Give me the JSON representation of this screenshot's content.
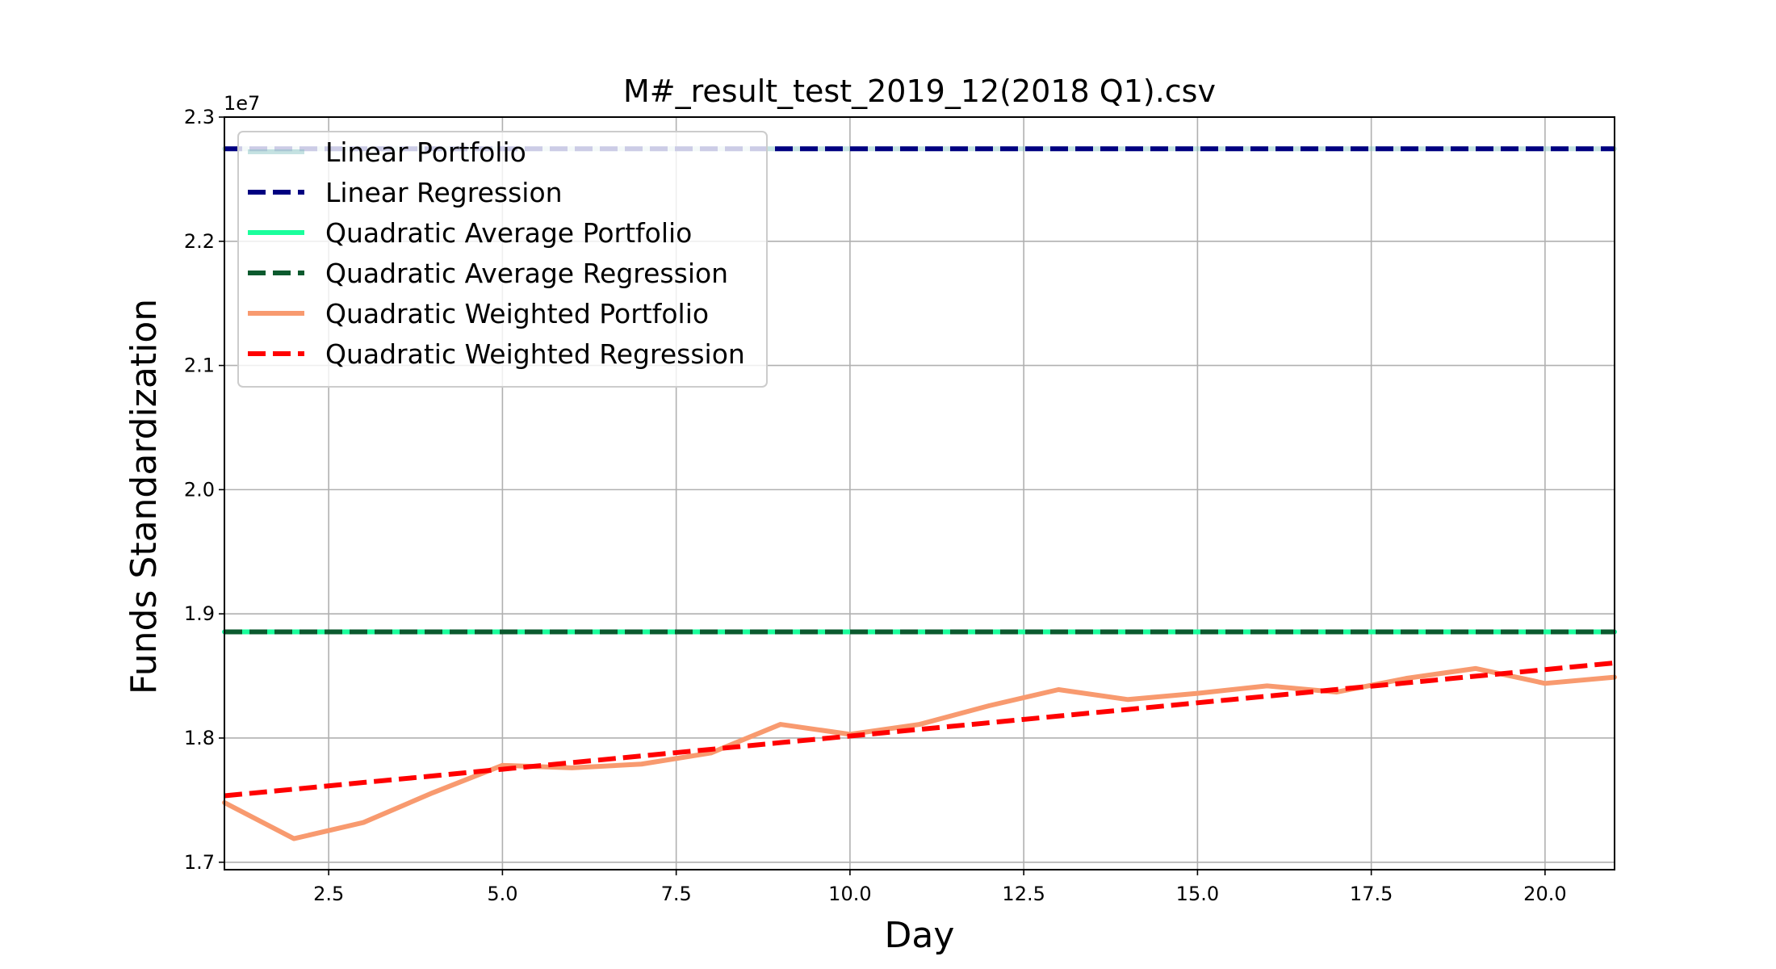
{
  "chart_data": {
    "type": "line",
    "title": "M#_result_test_2019_12(2018 Q1).csv",
    "xlabel": "Day",
    "ylabel": "Funds Standardization",
    "y_offset_label": "1e7",
    "xlim": [
      1,
      21
    ],
    "ylim": [
      1.694,
      2.3
    ],
    "x_ticks": [
      2.5,
      5.0,
      7.5,
      10.0,
      12.5,
      15.0,
      17.5,
      20.0
    ],
    "x_tick_labels": [
      "2.5",
      "5.0",
      "7.5",
      "10.0",
      "12.5",
      "15.0",
      "17.5",
      "20.0"
    ],
    "y_ticks": [
      1.7,
      1.8,
      1.9,
      2.0,
      2.1,
      2.2,
      2.3
    ],
    "y_tick_labels": [
      "1.7",
      "1.8",
      "1.9",
      "2.0",
      "2.1",
      "2.2",
      "2.3"
    ],
    "grid": true,
    "legend_position": "top-left",
    "x": [
      1,
      2,
      3,
      4,
      5,
      6,
      7,
      8,
      9,
      10,
      11,
      12,
      13,
      14,
      15,
      16,
      17,
      18,
      19,
      20,
      21
    ],
    "series": [
      {
        "name": "Linear Portfolio",
        "style": "solid",
        "color": "#7fbfbf",
        "opacity": 0.45,
        "values": [
          2.2745,
          2.2745,
          2.2745,
          2.2745,
          2.2745,
          2.2745,
          2.2745,
          2.2745,
          2.2745,
          2.2745,
          2.2745,
          2.2745,
          2.2745,
          2.2745,
          2.2745,
          2.2745,
          2.2745,
          2.2745,
          2.2745,
          2.2745,
          2.2745
        ]
      },
      {
        "name": "Linear Regression",
        "style": "dashed",
        "color": "#000080",
        "values": [
          2.2745,
          2.2745,
          2.2745,
          2.2745,
          2.2745,
          2.2745,
          2.2745,
          2.2745,
          2.2745,
          2.2745,
          2.2745,
          2.2745,
          2.2745,
          2.2745,
          2.2745,
          2.2745,
          2.2745,
          2.2745,
          2.2745,
          2.2745,
          2.2745
        ]
      },
      {
        "name": "Quadratic Average Portfolio",
        "style": "solid",
        "color": "#1aff9c",
        "values": [
          1.8855,
          1.8855,
          1.8855,
          1.8855,
          1.8855,
          1.8855,
          1.8855,
          1.8855,
          1.8855,
          1.8855,
          1.8855,
          1.8855,
          1.8855,
          1.8855,
          1.8855,
          1.8855,
          1.8855,
          1.8855,
          1.8855,
          1.8855,
          1.8855
        ]
      },
      {
        "name": "Quadratic Average Regression",
        "style": "dashed",
        "color": "#0b5a2e",
        "values": [
          1.8855,
          1.8855,
          1.8855,
          1.8855,
          1.8855,
          1.8855,
          1.8855,
          1.8855,
          1.8855,
          1.8855,
          1.8855,
          1.8855,
          1.8855,
          1.8855,
          1.8855,
          1.8855,
          1.8855,
          1.8855,
          1.8855,
          1.8855,
          1.8855
        ]
      },
      {
        "name": "Quadratic Weighted Portfolio",
        "style": "solid",
        "color": "#f89a6f",
        "values": [
          1.748,
          1.719,
          1.732,
          1.756,
          1.778,
          1.776,
          1.779,
          1.788,
          1.811,
          1.803,
          1.811,
          1.826,
          1.839,
          1.831,
          1.836,
          1.842,
          1.837,
          1.848,
          1.856,
          1.844,
          1.849
        ]
      },
      {
        "name": "Quadratic Weighted Regression",
        "style": "dashed",
        "color": "#ff0000",
        "values": [
          1.7535,
          1.7588,
          1.7642,
          1.7695,
          1.7749,
          1.7802,
          1.7856,
          1.7909,
          1.7963,
          1.8016,
          1.807,
          1.8123,
          1.8177,
          1.823,
          1.8284,
          1.8337,
          1.8391,
          1.8444,
          1.8498,
          1.8551,
          1.8605
        ]
      }
    ]
  }
}
